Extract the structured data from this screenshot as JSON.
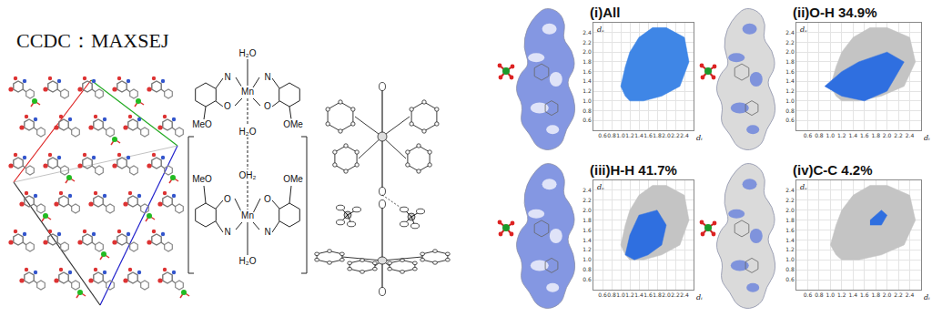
{
  "header": {
    "label": "CCDC：MAXSEJ"
  },
  "scheme": {
    "labels": [
      "H₂O",
      "N",
      "N",
      "Mn",
      "O",
      "O",
      "MeO",
      "OMe",
      "H₂O",
      "OH₂",
      "MeO",
      "OMe",
      "O",
      "O",
      "Mn",
      "N",
      "N",
      "H₂O"
    ]
  },
  "chart_data": [
    {
      "type": "scatter",
      "title": "(i)All",
      "x_label": "dᵢ",
      "y_label": "dₑ",
      "xlim": [
        0.4,
        2.6
      ],
      "ylim": [
        0.4,
        2.6
      ],
      "xticks": [
        0.6,
        0.8,
        {
          "value": 1,
          "label": "1.0"
        },
        1.2,
        1.4,
        1.6,
        1.8,
        {
          "value": 2,
          "label": "2.0"
        },
        2.2,
        2.4
      ],
      "yticks": [
        0.6,
        0.8,
        {
          "value": 1,
          "label": "1.0"
        },
        1.2,
        1.4,
        1.6,
        1.8,
        {
          "value": 2,
          "label": "2.0"
        },
        2.2,
        2.4
      ],
      "grid": true,
      "series": [
        {
          "type": "area",
          "color": "#3f86e6",
          "x": [
            1.0,
            1.1,
            1.2,
            1.5,
            1.9,
            2.3,
            2.5,
            2.4,
            2.0,
            1.7,
            1.4,
            1.2,
            1.1,
            1.0
          ],
          "y": [
            1.3,
            1.1,
            1.0,
            1.0,
            1.1,
            1.3,
            1.8,
            2.3,
            2.5,
            2.5,
            2.3,
            2.0,
            1.7,
            1.3
          ]
        }
      ]
    },
    {
      "type": "scatter",
      "title": "(ii)O-H 34.9%",
      "x_label": "dᵢ",
      "y_label": "dₑ",
      "xlim": [
        0.4,
        2.6
      ],
      "ylim": [
        0.4,
        2.6
      ],
      "xticks": [
        0.6,
        0.8,
        {
          "value": 1,
          "label": "1.0"
        },
        1.2,
        1.4,
        1.6,
        1.8,
        {
          "value": 2,
          "label": "2.0"
        },
        2.2,
        2.4
      ],
      "yticks": [
        0.6,
        0.8,
        {
          "value": 1,
          "label": "1.0"
        },
        1.2,
        1.4,
        1.6,
        1.8,
        {
          "value": 2,
          "label": "2.0"
        },
        2.2,
        2.4
      ],
      "grid": true,
      "series": [
        {
          "type": "area",
          "color": "#c4c4c4",
          "x": [
            1.0,
            1.1,
            1.2,
            1.5,
            1.9,
            2.3,
            2.5,
            2.4,
            2.0,
            1.7,
            1.4,
            1.2,
            1.1,
            1.0
          ],
          "y": [
            1.3,
            1.1,
            1.0,
            1.0,
            1.1,
            1.3,
            1.8,
            2.3,
            2.5,
            2.5,
            2.3,
            2.0,
            1.7,
            1.3
          ]
        },
        {
          "type": "area",
          "color": "#2f6fe0",
          "x": [
            0.9,
            1.2,
            1.6,
            2.0,
            2.3,
            2.0,
            1.5,
            1.2,
            0.9
          ],
          "y": [
            1.3,
            1.1,
            1.0,
            1.2,
            1.8,
            2.0,
            1.8,
            1.6,
            1.3
          ]
        }
      ]
    },
    {
      "type": "scatter",
      "title": "(iii)H-H 41.7%",
      "x_label": "dᵢ",
      "y_label": "dₑ",
      "xlim": [
        0.4,
        2.6
      ],
      "ylim": [
        0.4,
        2.6
      ],
      "xticks": [
        0.6,
        0.8,
        {
          "value": 1,
          "label": "1.0"
        },
        1.2,
        1.4,
        1.6,
        1.8,
        {
          "value": 2,
          "label": "2.0"
        },
        2.2,
        2.4
      ],
      "yticks": [
        0.6,
        0.8,
        {
          "value": 1,
          "label": "1.0"
        },
        1.2,
        1.4,
        1.6,
        1.8,
        {
          "value": 2,
          "label": "2.0"
        },
        2.2,
        2.4
      ],
      "grid": true,
      "series": [
        {
          "type": "area",
          "color": "#c4c4c4",
          "x": [
            1.0,
            1.1,
            1.2,
            1.5,
            1.9,
            2.3,
            2.5,
            2.4,
            2.0,
            1.7,
            1.4,
            1.2,
            1.1,
            1.0
          ],
          "y": [
            1.3,
            1.1,
            1.0,
            1.0,
            1.1,
            1.3,
            1.8,
            2.3,
            2.5,
            2.5,
            2.3,
            2.0,
            1.7,
            1.3
          ]
        },
        {
          "type": "area",
          "color": "#2f6fe0",
          "x": [
            1.1,
            1.3,
            1.6,
            1.9,
            2.0,
            1.8,
            1.4,
            1.2,
            1.1
          ],
          "y": [
            1.1,
            1.0,
            1.1,
            1.3,
            1.7,
            2.0,
            1.9,
            1.5,
            1.1
          ]
        }
      ]
    },
    {
      "type": "scatter",
      "title": "(iv)C-C 4.2%",
      "x_label": "dᵢ",
      "y_label": "dₑ",
      "xlim": [
        0.4,
        2.6
      ],
      "ylim": [
        0.4,
        2.6
      ],
      "xticks": [
        0.6,
        0.8,
        {
          "value": 1,
          "label": "1.0"
        },
        1.2,
        1.4,
        1.6,
        1.8,
        {
          "value": 2,
          "label": "2.0"
        },
        2.2,
        2.4
      ],
      "yticks": [
        0.6,
        0.8,
        {
          "value": 1,
          "label": "1.0"
        },
        1.2,
        1.4,
        1.6,
        1.8,
        {
          "value": 2,
          "label": "2.0"
        },
        2.2,
        2.4
      ],
      "grid": true,
      "series": [
        {
          "type": "area",
          "color": "#c4c4c4",
          "x": [
            1.0,
            1.1,
            1.2,
            1.5,
            1.9,
            2.3,
            2.5,
            2.4,
            2.0,
            1.7,
            1.4,
            1.2,
            1.1,
            1.0
          ],
          "y": [
            1.3,
            1.1,
            1.0,
            1.0,
            1.1,
            1.3,
            1.8,
            2.3,
            2.5,
            2.5,
            2.3,
            2.0,
            1.7,
            1.3
          ]
        },
        {
          "type": "area",
          "color": "#2f6fe0",
          "x": [
            1.7,
            1.9,
            2.0,
            1.9,
            1.7
          ],
          "y": [
            1.7,
            1.7,
            1.9,
            2.0,
            1.8
          ]
        }
      ]
    }
  ]
}
